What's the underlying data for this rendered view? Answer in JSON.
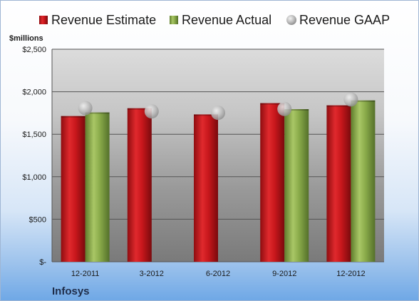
{
  "chart_data": {
    "type": "bar",
    "unit_label": "$millions",
    "company": "Infosys",
    "categories": [
      "12-2011",
      "3-2012",
      "6-2012",
      "9-2012",
      "12-2012"
    ],
    "series": [
      {
        "name": "Revenue Estimate",
        "kind": "bar",
        "color": "#c8171c",
        "values": [
          1714,
          1806,
          1733,
          1866,
          1840
        ]
      },
      {
        "name": "Revenue Actual",
        "kind": "bar",
        "color": "#8aab4a",
        "values": [
          1757,
          null,
          null,
          1795,
          1898
        ]
      },
      {
        "name": "Revenue GAAP",
        "kind": "marker",
        "color": "#b3b3b3",
        "values": [
          1808,
          1769,
          1752,
          1797,
          1910
        ]
      }
    ],
    "ylim": [
      0,
      2500
    ],
    "yticks": [
      0,
      500,
      1000,
      1500,
      2000,
      2500
    ],
    "ytick_labels": [
      "$-",
      "$500",
      "$1,000",
      "$1,500",
      "$2,000",
      "$2,500"
    ],
    "grid": true,
    "legend_position": "top"
  }
}
